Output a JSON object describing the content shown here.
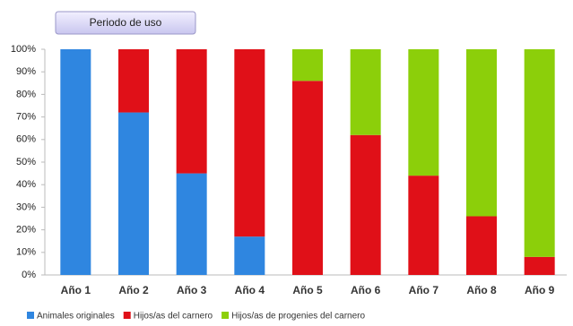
{
  "chart_data": {
    "type": "stacked-bar",
    "title": "Periodo de uso",
    "categories": [
      "Año 1",
      "Año 2",
      "Año 3",
      "Año 4",
      "Año 5",
      "Año 6",
      "Año 7",
      "Año 8",
      "Año 9"
    ],
    "series": [
      {
        "name": "Animales originales",
        "color": "#2f86e0",
        "values": [
          100,
          72,
          45,
          17,
          0,
          0,
          0,
          0,
          0
        ]
      },
      {
        "name": "Hijos/as del carnero",
        "color": "#e01018",
        "values": [
          0,
          28,
          55,
          83,
          86,
          62,
          44,
          26,
          8
        ]
      },
      {
        "name": "Hijos/as de progenies del carnero",
        "color": "#8ccf0a",
        "values": [
          0,
          0,
          0,
          0,
          14,
          38,
          56,
          74,
          92
        ]
      }
    ],
    "ylim": [
      0,
      100
    ],
    "yticks": [
      {
        "value": 0,
        "label": "0%"
      },
      {
        "value": 10,
        "label": "10%"
      },
      {
        "value": 20,
        "label": "20%"
      },
      {
        "value": 30,
        "label": "30%"
      },
      {
        "value": 40,
        "label": "40%"
      },
      {
        "value": 50,
        "label": "50%"
      },
      {
        "value": 60,
        "label": "60%"
      },
      {
        "value": 70,
        "label": "70%"
      },
      {
        "value": 80,
        "label": "80%"
      },
      {
        "value": 90,
        "label": "90%"
      },
      {
        "value": 100,
        "label": "100%"
      }
    ],
    "grid": false,
    "legend": "bottom"
  }
}
